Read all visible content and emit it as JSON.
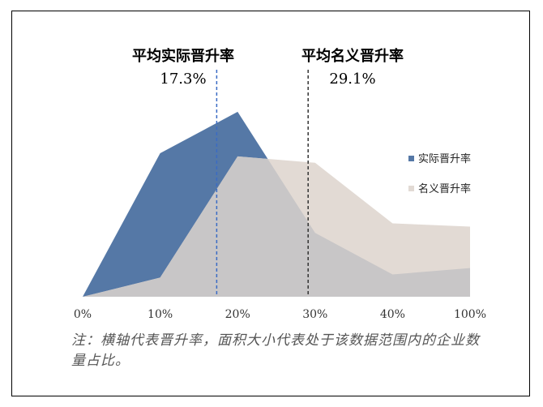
{
  "chart_data": {
    "type": "area",
    "categories": [
      "0%",
      "10%",
      "20%",
      "30%",
      "40%",
      "100%"
    ],
    "series": [
      {
        "name": "实际晋升率",
        "values": [
          0,
          45,
          58,
          20,
          7,
          9
        ],
        "color": "#5578A6"
      },
      {
        "name": "名义晋升率",
        "values": [
          0,
          6,
          44,
          42,
          23,
          22
        ],
        "color": "#E2DAD4"
      }
    ],
    "overlap_color": "#C8C6C7",
    "ylim": [
      0,
      60
    ],
    "grid": false,
    "legend_position": "right",
    "annotations": [
      {
        "title": "平均实际晋升率",
        "value_label": "17.3%",
        "x": 17.3,
        "line_color": "#3A6BC4"
      },
      {
        "title": "平均名义晋升率",
        "value_label": "29.1%",
        "x": 29.1,
        "line_color": "#333333"
      }
    ],
    "note": "注：横轴代表晋升率，面积大小代表处于该数据范围内的企业数量占比。"
  }
}
